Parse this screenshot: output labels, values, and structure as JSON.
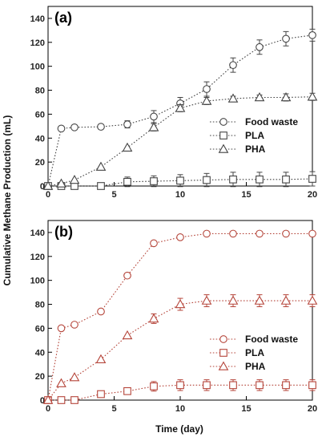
{
  "ylabel": "Cumulative Methane Production (mL)",
  "xlabel": "Time (day)",
  "chart_data": [
    {
      "type": "line",
      "panel_label": "(a)",
      "color": "#444444",
      "xlim": [
        0,
        20
      ],
      "ylim": [
        0,
        150
      ],
      "xticks": [
        0,
        5,
        10,
        15,
        20
      ],
      "yticks": [
        0,
        20,
        40,
        60,
        80,
        100,
        120,
        140
      ],
      "grid": false,
      "legend_position": "center-right",
      "series": [
        {
          "name": "Food waste",
          "marker": "circle",
          "x": [
            0,
            1,
            2,
            4,
            6,
            8,
            10,
            12,
            14,
            16,
            18,
            20
          ],
          "y": [
            0,
            48,
            49,
            49.5,
            51.5,
            58,
            69,
            81,
            101,
            116,
            123,
            126
          ],
          "err": [
            0,
            0,
            0,
            1.5,
            3,
            5,
            5,
            6,
            6,
            6,
            6,
            5
          ]
        },
        {
          "name": "PLA",
          "marker": "square",
          "x": [
            0,
            1,
            2,
            4,
            6,
            8,
            10,
            12,
            14,
            16,
            18,
            20
          ],
          "y": [
            0,
            0,
            0,
            0,
            3.5,
            4,
            4.5,
            5,
            5.5,
            5.5,
            5.5,
            6
          ],
          "err": [
            0,
            0,
            0,
            0,
            4,
            4.5,
            5,
            5.5,
            6,
            6,
            6,
            6
          ]
        },
        {
          "name": "PHA",
          "marker": "triangle",
          "x": [
            0,
            1,
            2,
            4,
            6,
            8,
            10,
            12,
            14,
            16,
            18,
            20
          ],
          "y": [
            0,
            2,
            5,
            16,
            32,
            49,
            65,
            71,
            73,
            74,
            74,
            74.5
          ],
          "err": [
            0,
            0,
            0,
            0,
            0,
            3,
            3,
            3,
            2,
            2,
            3,
            3
          ]
        }
      ]
    },
    {
      "type": "line",
      "panel_label": "(b)",
      "color": "#b5453a",
      "xlim": [
        0,
        20
      ],
      "ylim": [
        0,
        150
      ],
      "xticks": [
        0,
        5,
        10,
        15,
        20
      ],
      "yticks": [
        0,
        20,
        40,
        60,
        80,
        100,
        120,
        140
      ],
      "grid": false,
      "legend_position": "bottom-right",
      "series": [
        {
          "name": "Food waste",
          "marker": "circle",
          "x": [
            0,
            1,
            2,
            4,
            6,
            8,
            10,
            12,
            14,
            16,
            18,
            20
          ],
          "y": [
            0,
            60,
            63,
            74,
            104,
            131,
            136,
            139,
            139,
            139,
            139,
            139
          ],
          "err": [
            0,
            0,
            0,
            0,
            0,
            0,
            0,
            0,
            0,
            0,
            0,
            0
          ]
        },
        {
          "name": "PLA",
          "marker": "square",
          "x": [
            0,
            1,
            2,
            4,
            6,
            8,
            10,
            12,
            14,
            16,
            18,
            20
          ],
          "y": [
            0,
            0,
            0,
            5,
            7.5,
            11.5,
            12.5,
            12.5,
            12.5,
            12.5,
            12.5,
            12.5
          ],
          "err": [
            0,
            0,
            0,
            0,
            0,
            4,
            4.5,
            4.5,
            4.5,
            4.5,
            4.5,
            4.5
          ]
        },
        {
          "name": "PHA",
          "marker": "triangle",
          "x": [
            0,
            1,
            2,
            4,
            6,
            8,
            10,
            12,
            14,
            16,
            18,
            20
          ],
          "y": [
            0,
            14,
            19,
            34,
            54,
            68,
            80,
            83,
            83,
            83,
            83,
            83
          ],
          "err": [
            0,
            0,
            0,
            0,
            0,
            4,
            5,
            5,
            5,
            5,
            5,
            5
          ]
        }
      ]
    }
  ]
}
